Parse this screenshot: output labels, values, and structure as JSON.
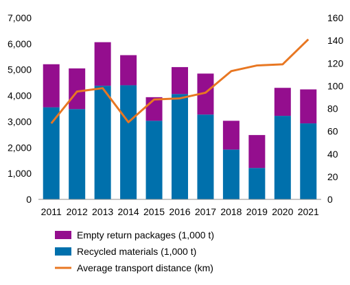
{
  "chart_data": {
    "type": "bar",
    "categories": [
      "2011",
      "2012",
      "2013",
      "2014",
      "2015",
      "2016",
      "2017",
      "2018",
      "2019",
      "2020",
      "2021"
    ],
    "series": [
      {
        "name": "Recycled materials (1,000 t)",
        "kind": "stacked-bar",
        "axis": "left",
        "color": "#0070ac",
        "values": [
          3550,
          3480,
          4380,
          4400,
          3030,
          4060,
          3270,
          1920,
          1210,
          3220,
          2930
        ]
      },
      {
        "name": "Empty return packages (1,000 t)",
        "kind": "stacked-bar",
        "axis": "left",
        "color": "#940e8e",
        "values": [
          1660,
          1570,
          1680,
          1160,
          910,
          1040,
          1580,
          1110,
          1270,
          1080,
          1310
        ]
      },
      {
        "name": "Average transport distance (km)",
        "kind": "line",
        "axis": "right",
        "color": "#e87722",
        "values": [
          67,
          95,
          98,
          68,
          88,
          89,
          94,
          113,
          118,
          119,
          141
        ]
      }
    ],
    "left_axis": {
      "min": 0,
      "max": 7000,
      "step": 1000,
      "tick_labels": [
        "0",
        "1,000",
        "2,000",
        "3,000",
        "4,000",
        "5,000",
        "6,000",
        "7,000"
      ]
    },
    "right_axis": {
      "min": 0,
      "max": 160,
      "step": 20,
      "tick_labels": [
        "0",
        "20",
        "40",
        "60",
        "80",
        "100",
        "120",
        "140",
        "160"
      ]
    },
    "legend": {
      "placement": "bottom",
      "entries": [
        "Empty return packages (1,000 t)",
        "Recycled materials (1,000 t)",
        "Average transport distance (km)"
      ],
      "colors": [
        "#940e8e",
        "#0070ac",
        "#e87722"
      ],
      "kinds": [
        "bar",
        "bar",
        "line"
      ]
    },
    "grid": false
  }
}
